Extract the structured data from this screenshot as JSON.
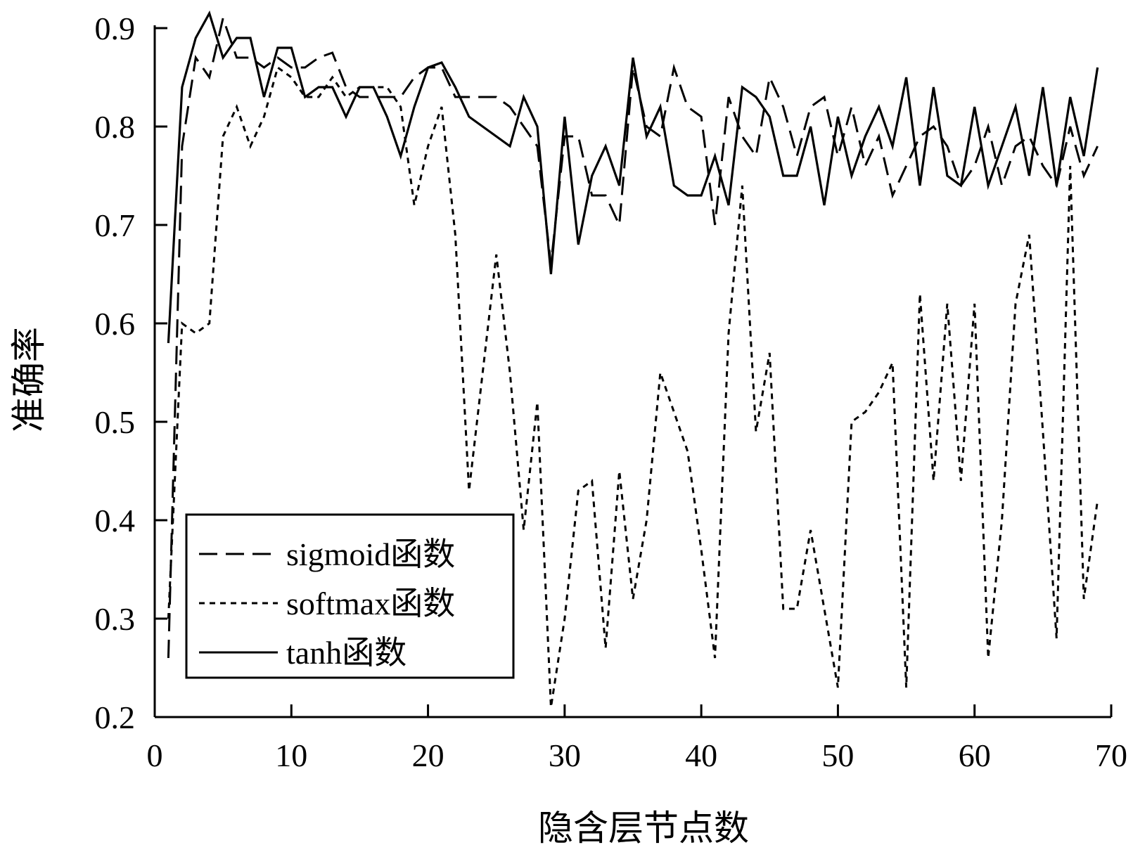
{
  "chart_data": {
    "type": "line",
    "title": "",
    "xlabel": "隐含层节点数",
    "ylabel": "准确率",
    "xlim": [
      0,
      70
    ],
    "ylim": [
      0.2,
      0.9
    ],
    "xticks": [
      0,
      10,
      20,
      30,
      40,
      50,
      60,
      70
    ],
    "yticks": [
      0.2,
      0.3,
      0.4,
      0.5,
      0.6,
      0.7,
      0.8,
      0.9
    ],
    "xtick_labels": [
      "0",
      "10",
      "20",
      "30",
      "40",
      "50",
      "60",
      "70"
    ],
    "ytick_labels": [
      "0.2",
      "0.3",
      "0.4",
      "0.5",
      "0.6",
      "0.7",
      "0.8",
      "0.9"
    ],
    "grid": false,
    "legend_position": "bottom-left",
    "x": [
      1,
      2,
      3,
      4,
      5,
      6,
      7,
      8,
      9,
      10,
      11,
      12,
      13,
      14,
      15,
      16,
      17,
      18,
      19,
      20,
      21,
      22,
      23,
      24,
      25,
      26,
      27,
      28,
      29,
      30,
      31,
      32,
      33,
      34,
      35,
      36,
      37,
      38,
      39,
      40,
      41,
      42,
      43,
      44,
      45,
      46,
      47,
      48,
      49,
      50,
      51,
      52,
      53,
      54,
      55,
      56,
      57,
      58,
      59,
      60,
      61,
      62,
      63,
      64,
      65,
      66,
      67,
      68,
      69
    ],
    "series": [
      {
        "name": "sigmoid函数",
        "style": "dashed",
        "values": [
          0.26,
          0.78,
          0.87,
          0.85,
          0.91,
          0.87,
          0.87,
          0.86,
          0.87,
          0.86,
          0.86,
          0.87,
          0.875,
          0.84,
          0.83,
          0.83,
          0.83,
          0.83,
          0.85,
          0.86,
          0.86,
          0.83,
          0.83,
          0.83,
          0.83,
          0.82,
          0.8,
          0.78,
          0.66,
          0.79,
          0.79,
          0.73,
          0.73,
          0.7,
          0.86,
          0.8,
          0.79,
          0.86,
          0.82,
          0.81,
          0.7,
          0.83,
          0.79,
          0.77,
          0.85,
          0.82,
          0.77,
          0.82,
          0.83,
          0.77,
          0.82,
          0.76,
          0.79,
          0.73,
          0.76,
          0.79,
          0.8,
          0.78,
          0.74,
          0.76,
          0.8,
          0.74,
          0.78,
          0.79,
          0.76,
          0.74,
          0.8,
          0.75,
          0.78
        ]
      },
      {
        "name": "softmax函数",
        "style": "dotted",
        "values": [
          0.3,
          0.6,
          0.59,
          0.6,
          0.79,
          0.82,
          0.78,
          0.81,
          0.86,
          0.85,
          0.83,
          0.83,
          0.85,
          0.83,
          0.84,
          0.84,
          0.84,
          0.82,
          0.72,
          0.78,
          0.82,
          0.69,
          0.43,
          0.55,
          0.67,
          0.55,
          0.39,
          0.52,
          0.21,
          0.3,
          0.43,
          0.44,
          0.27,
          0.45,
          0.32,
          0.4,
          0.55,
          0.51,
          0.47,
          0.37,
          0.26,
          0.59,
          0.74,
          0.49,
          0.57,
          0.31,
          0.31,
          0.39,
          0.31,
          0.23,
          0.5,
          0.51,
          0.53,
          0.56,
          0.23,
          0.63,
          0.44,
          0.62,
          0.44,
          0.62,
          0.26,
          0.4,
          0.62,
          0.69,
          0.49,
          0.28,
          0.76,
          0.32,
          0.42
        ]
      },
      {
        "name": "tanh函数",
        "style": "solid",
        "values": [
          0.58,
          0.84,
          0.89,
          0.915,
          0.87,
          0.89,
          0.89,
          0.83,
          0.88,
          0.88,
          0.83,
          0.84,
          0.84,
          0.81,
          0.84,
          0.84,
          0.81,
          0.77,
          0.82,
          0.86,
          0.865,
          0.84,
          0.81,
          0.8,
          0.79,
          0.78,
          0.83,
          0.8,
          0.65,
          0.81,
          0.68,
          0.75,
          0.78,
          0.74,
          0.87,
          0.79,
          0.82,
          0.74,
          0.73,
          0.73,
          0.77,
          0.72,
          0.84,
          0.83,
          0.81,
          0.75,
          0.75,
          0.8,
          0.72,
          0.81,
          0.75,
          0.79,
          0.82,
          0.78,
          0.85,
          0.74,
          0.84,
          0.75,
          0.74,
          0.82,
          0.74,
          0.78,
          0.82,
          0.75,
          0.84,
          0.74,
          0.83,
          0.77,
          0.86
        ]
      }
    ]
  }
}
